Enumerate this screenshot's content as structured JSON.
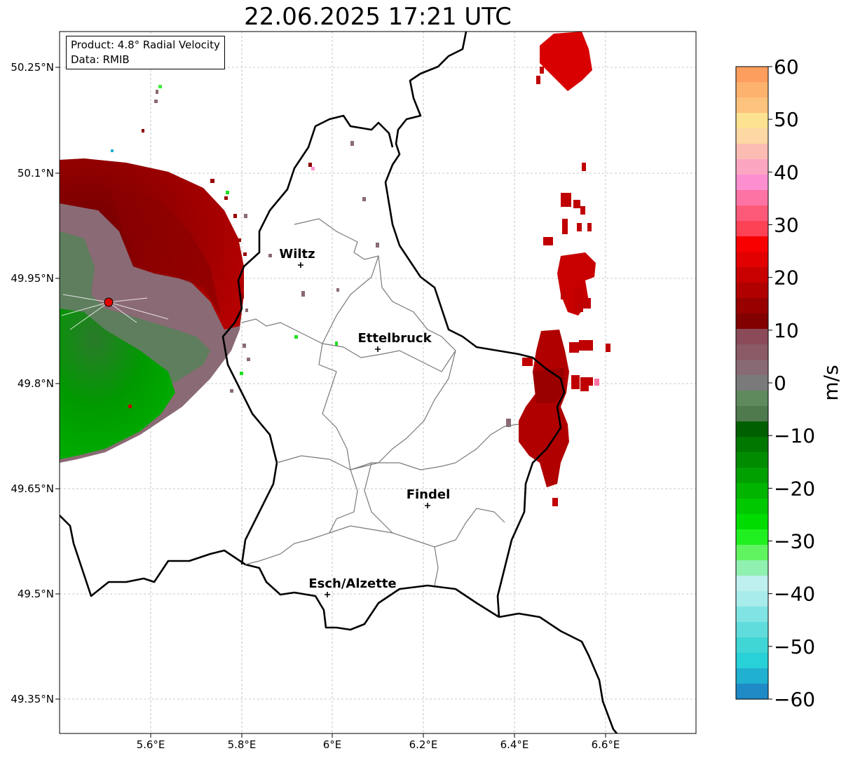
{
  "title": "22.06.2025 17:21 UTC",
  "info": {
    "product": "Product: 4.8° Radial Velocity",
    "source": "Data: RMIB"
  },
  "axes": {
    "lon_ticks": [
      "5.6°E",
      "5.8°E",
      "6°E",
      "6.2°E",
      "6.4°E",
      "6.6°E"
    ],
    "lat_ticks": [
      "50.25°N",
      "50.1°N",
      "49.95°N",
      "49.8°N",
      "49.65°N",
      "49.5°N",
      "49.35°N"
    ]
  },
  "colorbar": {
    "unit": "m/s",
    "ticks": [
      "60",
      "50",
      "40",
      "30",
      "20",
      "10",
      "0",
      "−10",
      "−20",
      "−30",
      "−40",
      "−50",
      "−60"
    ],
    "min": -60,
    "max": 60,
    "colors_top_to_bottom": [
      "#fd9e5e",
      "#fdb26e",
      "#fdc37e",
      "#fde291",
      "#fdd7a4",
      "#fcbcb4",
      "#fca6c2",
      "#fd8fd0",
      "#fd74a4",
      "#fd5a7a",
      "#fd4255",
      "#f80000",
      "#e20000",
      "#c80000",
      "#b00000",
      "#980000",
      "#820000",
      "#8a4a58",
      "#8a5a66",
      "#886a74",
      "#7a7a7a",
      "#5e8a5e",
      "#4e7a4e",
      "#006000",
      "#007800",
      "#008c00",
      "#00a000",
      "#00b400",
      "#00c800",
      "#00dc00",
      "#20f020",
      "#60f560",
      "#90f0b0",
      "#bff0f0",
      "#a8ecec",
      "#80e4e4",
      "#60dcdc",
      "#40d6d6",
      "#28d0d8",
      "#20b0d0",
      "#1e8ac6"
    ]
  },
  "cities": [
    {
      "name": "Wiltz"
    },
    {
      "name": "Ettelbruck"
    },
    {
      "name": "Findel"
    },
    {
      "name": "Esch/Alzette"
    }
  ],
  "colors": {
    "border": "#000000",
    "canton": "#7a7a7a",
    "grid": "#b0b0b0",
    "radar_site": "#e00000"
  }
}
